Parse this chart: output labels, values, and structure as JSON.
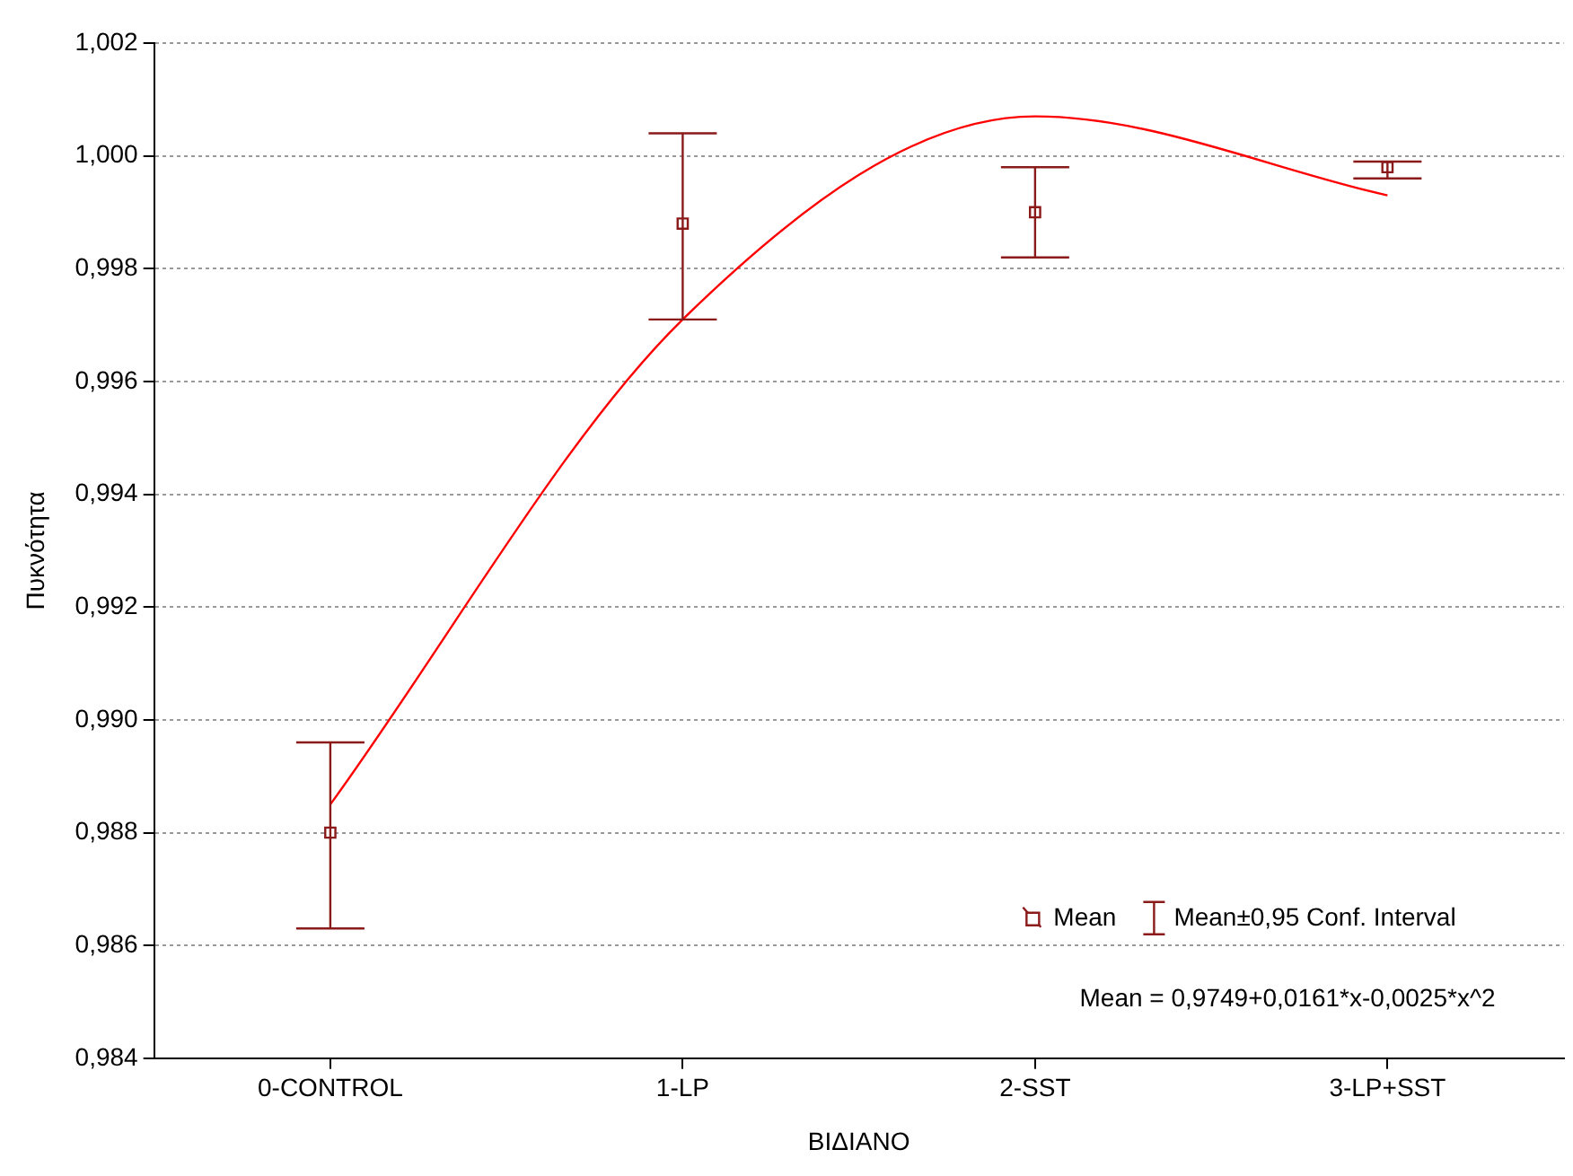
{
  "chart_data": {
    "type": "scatter",
    "xlabel": "ΒΙΔΙΑΝΟ",
    "ylabel": "Πυκνότητα",
    "annotations": [
      "Mean±0,95 Conf. Interval",
      "Mean = 0,9749+0,0161*x-0,0025*x^2"
    ],
    "categories": [
      "0-CONTROL",
      "1-LP",
      "2-SST",
      "3-LP+SST"
    ],
    "ylim": [
      0.984,
      1.002
    ],
    "yticks": [
      {
        "value": 0.984,
        "label": "0,984"
      },
      {
        "value": 0.986,
        "label": "0,986"
      },
      {
        "value": 0.988,
        "label": "0,988"
      },
      {
        "value": 0.99,
        "label": "0,990"
      },
      {
        "value": 0.992,
        "label": "0,992"
      },
      {
        "value": 0.994,
        "label": "0,994"
      },
      {
        "value": 0.996,
        "label": "0,996"
      },
      {
        "value": 0.998,
        "label": "0,998"
      },
      {
        "value": 1,
        "label": "1,000"
      },
      {
        "value": 1.002,
        "label": "1,002"
      }
    ],
    "grid": "y",
    "legend": "bottom right",
    "series": [
      {
        "name": "Mean",
        "color": "#8b1a1a",
        "marker": "square",
        "values": [
          0.988,
          0.9988,
          0.999,
          0.9998
        ],
        "errors": [
          [
            0.9863,
            0.9896
          ],
          [
            0.9971,
            1.0004
          ],
          [
            0.9982,
            0.9998
          ],
          [
            0.9996,
            0.9999
          ]
        ]
      },
      {
        "type": "line",
        "color": "#ff0000",
        "marker": "none",
        "line_style": "solid",
        "values": [
          0.9885,
          0.9971,
          1.0007,
          0.9993
        ]
      }
    ]
  }
}
